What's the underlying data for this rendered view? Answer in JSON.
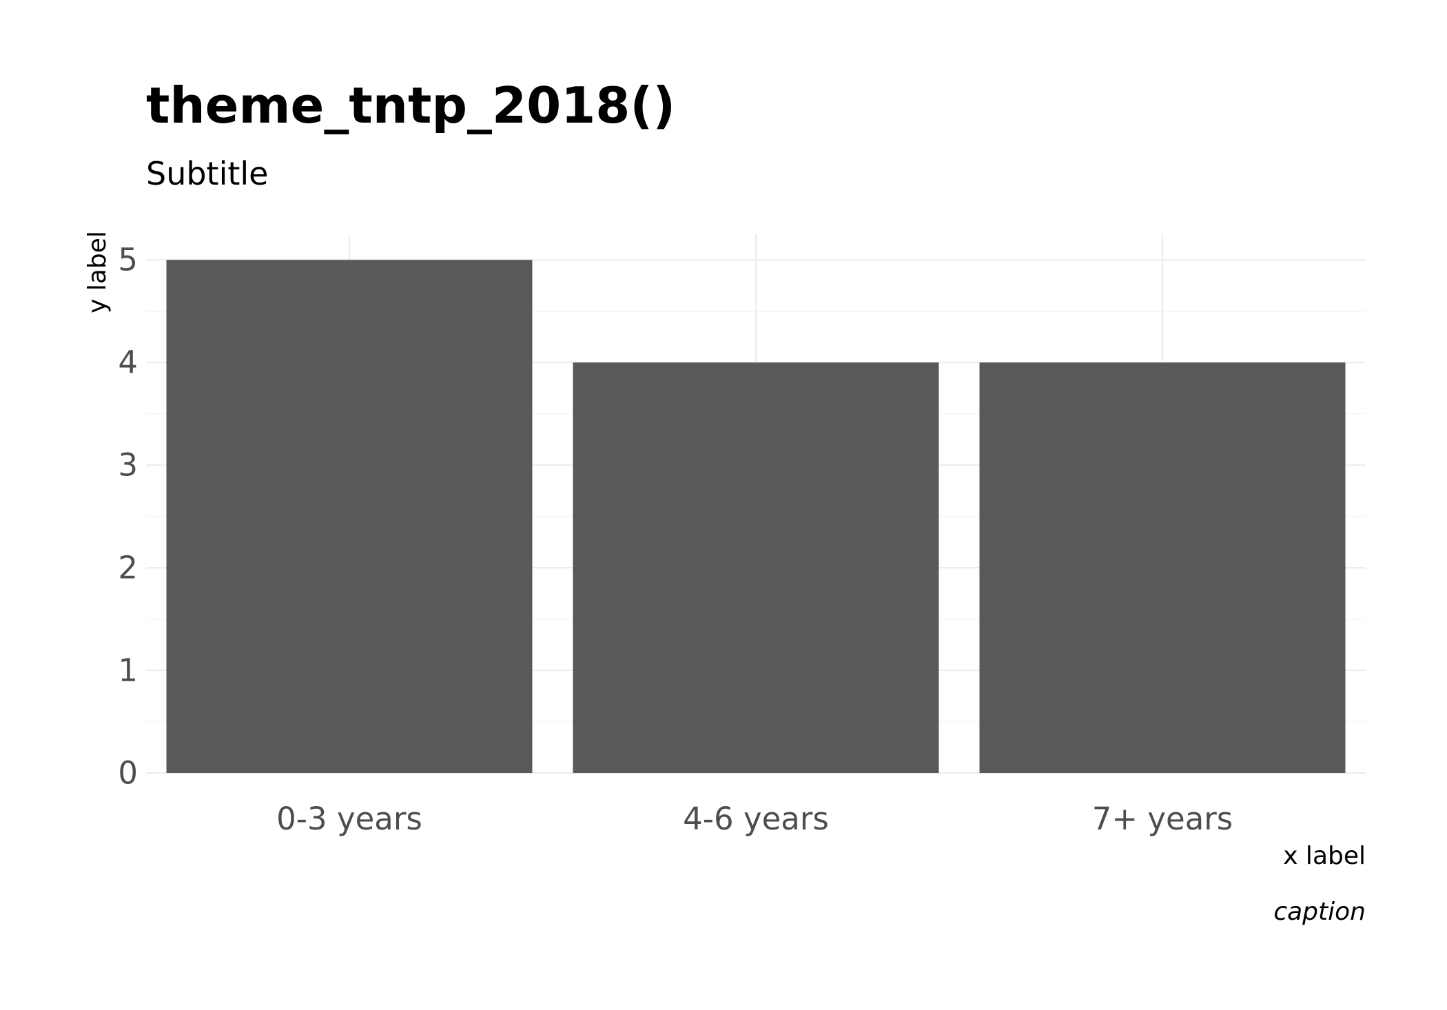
{
  "chart_data": {
    "type": "bar",
    "title": "theme_tntp_2018()",
    "subtitle": "Subtitle",
    "xlabel": "x label",
    "ylabel": "y label",
    "caption": "caption",
    "categories": [
      "0-3 years",
      "4-6 years",
      "7+ years"
    ],
    "values": [
      5,
      4,
      4
    ],
    "ylim": [
      0,
      5.25
    ],
    "yticks": [
      0,
      1,
      2,
      3,
      4,
      5
    ],
    "grid": true,
    "legend": "none",
    "colors": {
      "bar": "#595959",
      "grid_major": "#ebebeb",
      "grid_minor": "#f5f5f5",
      "tick_text": "#4d4d4d",
      "background": "#ffffff"
    }
  }
}
